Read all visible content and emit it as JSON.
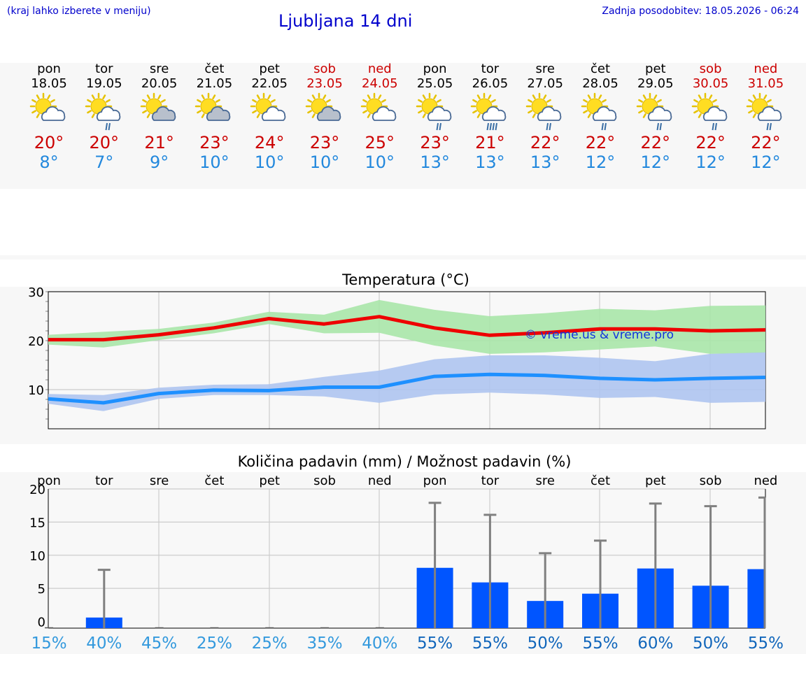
{
  "header": {
    "left_note": "(kraj lahko izberete v meniju)",
    "title": "Ljubljana 14 dni",
    "updated": "Zadnja posodobitev: 18.05.2026 - 06:24"
  },
  "days": [
    {
      "name": "pon",
      "date": "18.05",
      "weekend": false,
      "icon": "sun-cloud-icon",
      "max": "20°",
      "min": "8°"
    },
    {
      "name": "tor",
      "date": "19.05",
      "weekend": false,
      "icon": "sun-cloud-rain-icon",
      "max": "20°",
      "min": "7°"
    },
    {
      "name": "sre",
      "date": "20.05",
      "weekend": false,
      "icon": "sun-cloud-icon",
      "max": "21°",
      "min": "9°"
    },
    {
      "name": "čet",
      "date": "21.05",
      "weekend": false,
      "icon": "sun-cloud-icon",
      "max": "23°",
      "min": "10°"
    },
    {
      "name": "pet",
      "date": "22.05",
      "weekend": false,
      "icon": "sun-cloud-icon",
      "max": "24°",
      "min": "10°"
    },
    {
      "name": "sob",
      "date": "23.05",
      "weekend": true,
      "icon": "sun-cloud-icon",
      "max": "23°",
      "min": "10°"
    },
    {
      "name": "ned",
      "date": "24.05",
      "weekend": true,
      "icon": "sun-cloud-icon",
      "max": "25°",
      "min": "10°"
    },
    {
      "name": "pon",
      "date": "25.05",
      "weekend": false,
      "icon": "sun-cloud-rain-icon",
      "max": "23°",
      "min": "13°"
    },
    {
      "name": "tor",
      "date": "26.05",
      "weekend": false,
      "icon": "sun-cloud-heavy-rain-icon",
      "max": "21°",
      "min": "13°"
    },
    {
      "name": "sre",
      "date": "27.05",
      "weekend": false,
      "icon": "sun-cloud-rain-icon",
      "max": "22°",
      "min": "13°"
    },
    {
      "name": "čet",
      "date": "28.05",
      "weekend": false,
      "icon": "sun-cloud-rain-icon",
      "max": "22°",
      "min": "12°"
    },
    {
      "name": "pet",
      "date": "29.05",
      "weekend": false,
      "icon": "sun-cloud-rain-icon",
      "max": "22°",
      "min": "12°"
    },
    {
      "name": "sob",
      "date": "30.05",
      "weekend": true,
      "icon": "sun-cloud-rain-icon",
      "max": "22°",
      "min": "12°"
    },
    {
      "name": "ned",
      "date": "31.05",
      "weekend": true,
      "icon": "sun-cloud-rain-icon",
      "max": "22°",
      "min": "12°"
    }
  ],
  "colors": {
    "max": "#ee0000",
    "min": "#1e90ff",
    "max_band": "#a9e6a9",
    "min_band": "#aec4f0",
    "bar": "#0055ff",
    "whisker": "#808080",
    "pct_low": "#3399dd",
    "pct_high": "#1166bb"
  },
  "chart_data": [
    {
      "type": "line",
      "title": "Temperatura (°C)",
      "ylim": [
        2,
        30
      ],
      "yticks": [
        10,
        20,
        30
      ],
      "grid": true,
      "watermark": "© vreme.us & vreme.pro",
      "categories": [
        "18.05",
        "19.05",
        "20.05",
        "21.05",
        "22.05",
        "23.05",
        "24.05",
        "25.05",
        "26.05",
        "27.05",
        "28.05",
        "29.05",
        "30.05",
        "31.05"
      ],
      "series": [
        {
          "role": "max",
          "values": [
            20.2,
            20.2,
            21.2,
            22.6,
            24.5,
            23.4,
            24.9,
            22.6,
            21.1,
            21.6,
            22.4,
            22.4,
            22.0,
            22.2
          ],
          "band_low": [
            19.2,
            18.6,
            20.1,
            21.5,
            23.4,
            21.5,
            21.6,
            19.0,
            17.3,
            17.6,
            18.2,
            18.8,
            17.3,
            17.5
          ],
          "band_high": [
            21.2,
            21.8,
            22.4,
            23.7,
            25.9,
            25.3,
            28.3,
            26.3,
            25.0,
            25.6,
            26.5,
            26.2,
            27.1,
            27.2
          ]
        },
        {
          "role": "min",
          "values": [
            8.1,
            7.3,
            9.2,
            9.9,
            9.8,
            10.5,
            10.5,
            12.7,
            13.1,
            12.9,
            12.3,
            12.0,
            12.3,
            12.5
          ],
          "band_low": [
            7.1,
            5.6,
            8.1,
            8.9,
            8.9,
            8.6,
            7.3,
            9.0,
            9.4,
            9.0,
            8.3,
            8.5,
            7.3,
            7.5
          ],
          "band_high": [
            9.1,
            8.9,
            10.4,
            11.0,
            11.1,
            12.6,
            13.9,
            16.2,
            17.0,
            17.0,
            16.5,
            15.8,
            17.3,
            17.6
          ]
        }
      ]
    },
    {
      "type": "bar",
      "title": "Količina padavin (mm) / Možnost padavin (%)",
      "ylim": [
        -1,
        20
      ],
      "yticks": [
        0,
        5,
        10,
        15,
        20
      ],
      "grid": true,
      "categories": [
        "pon",
        "tor",
        "sre",
        "čet",
        "pet",
        "sob",
        "ned",
        "pon",
        "tor",
        "sre",
        "čet",
        "pet",
        "sob",
        "ned"
      ],
      "values": [
        0,
        0.6,
        0,
        0,
        0,
        0,
        0,
        8.1,
        5.9,
        3.1,
        4.2,
        8.0,
        5.4,
        7.9
      ],
      "whisker_high": [
        0,
        7.8,
        0,
        0,
        0,
        0,
        0,
        17.9,
        16.1,
        10.3,
        12.2,
        17.8,
        17.4,
        18.7
      ],
      "chance_pct": [
        "15%",
        "40%",
        "45%",
        "25%",
        "25%",
        "35%",
        "40%",
        "55%",
        "55%",
        "50%",
        "55%",
        "60%",
        "50%",
        "55%"
      ]
    }
  ]
}
